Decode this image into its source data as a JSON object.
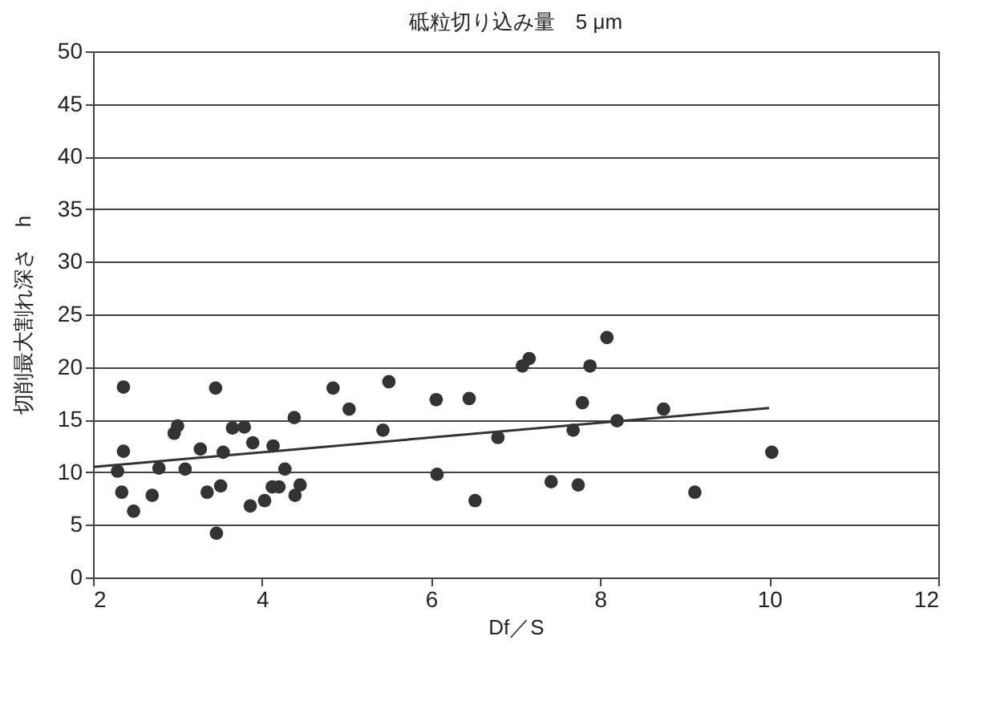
{
  "chart_data": {
    "type": "scatter",
    "title": "砥粒切り込み量　5 μm",
    "xlabel": "Df／S",
    "ylabel": "切削最大割れ深さ　h",
    "xlim": [
      2,
      12
    ],
    "xticks": [
      2,
      4,
      6,
      8,
      10,
      12
    ],
    "ylim": [
      0,
      50
    ],
    "yticks": [
      0,
      5,
      10,
      15,
      20,
      25,
      30,
      35,
      40,
      45,
      50
    ],
    "grid": "y",
    "series": [
      {
        "type": "scatter",
        "marker": "circle",
        "color": "#333333",
        "x": [
          2.36,
          2.36,
          2.29,
          2.34,
          2.48,
          2.7,
          2.78,
          2.96,
          3.0,
          3.09,
          3.27,
          3.35,
          3.51,
          3.45,
          3.54,
          3.46,
          3.65,
          3.79,
          3.89,
          3.86,
          4.03,
          4.13,
          4.12,
          4.2,
          4.27,
          4.38,
          4.39,
          4.45,
          4.84,
          5.03,
          5.43,
          5.5,
          6.06,
          6.07,
          6.45,
          6.52,
          6.79,
          7.08,
          7.16,
          7.42,
          7.68,
          7.74,
          7.79,
          7.88,
          8.08,
          8.2,
          8.75,
          9.12,
          10.03
        ],
        "values": [
          18.1,
          12.0,
          10.1,
          8.1,
          6.3,
          7.8,
          10.4,
          13.7,
          14.4,
          10.3,
          12.2,
          8.1,
          8.7,
          18.0,
          11.9,
          4.2,
          14.2,
          14.3,
          12.8,
          6.8,
          7.3,
          12.5,
          8.6,
          8.6,
          10.3,
          15.2,
          7.8,
          8.8,
          18.0,
          16.0,
          14.0,
          18.6,
          16.9,
          9.8,
          17.0,
          7.3,
          13.3,
          20.1,
          20.8,
          9.1,
          14.0,
          8.8,
          16.6,
          20.1,
          22.8,
          14.9,
          16.0,
          8.1,
          11.9
        ]
      },
      {
        "type": "line",
        "color": "#333333",
        "x": [
          2,
          10
        ],
        "values": [
          10.5,
          16.1
        ]
      }
    ]
  }
}
